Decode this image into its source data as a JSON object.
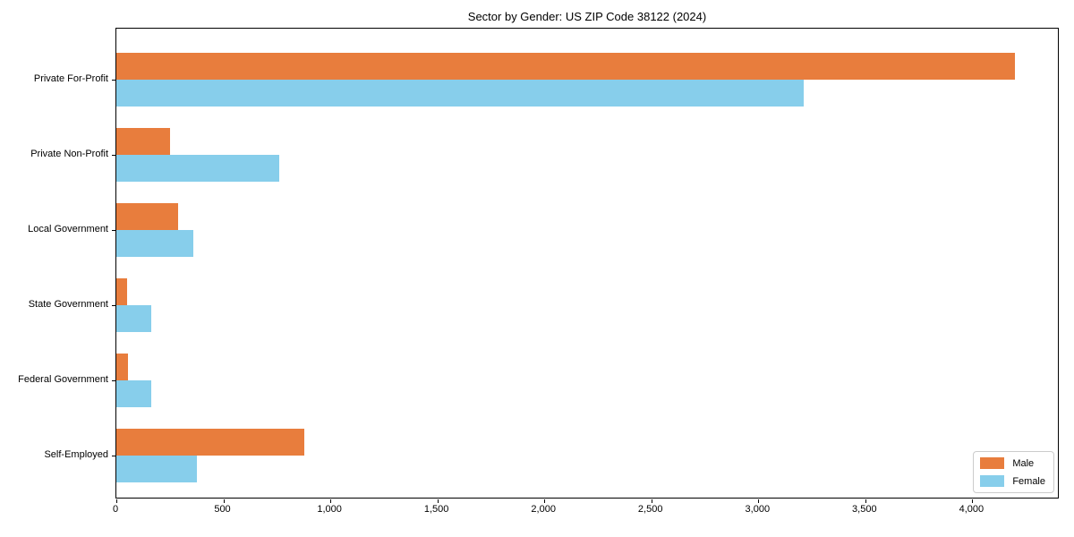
{
  "figure": {
    "background": "#ffffff"
  },
  "chart_data": {
    "type": "bar",
    "orientation": "horizontal",
    "title": "Sector by Gender: US ZIP Code 38122 (2024)",
    "categories": [
      "Private For-Profit",
      "Private Non-Profit",
      "Local Government",
      "State Government",
      "Federal Government",
      "Self-Employed"
    ],
    "series": [
      {
        "name": "Male",
        "color": "#e87d3d",
        "values": [
          4200,
          250,
          290,
          50,
          55,
          880
        ]
      },
      {
        "name": "Female",
        "color": "#87ceeb",
        "values": [
          3210,
          760,
          360,
          165,
          165,
          375
        ]
      }
    ],
    "xlabel": "",
    "ylabel": "",
    "xlim": [
      0,
      4400
    ],
    "xticks": [
      0,
      500,
      1000,
      1500,
      2000,
      2500,
      3000,
      3500,
      4000
    ],
    "xtick_labels": [
      "0",
      "500",
      "1,000",
      "1,500",
      "2,000",
      "2,500",
      "3,000",
      "3,500",
      "4,000"
    ],
    "grid": false,
    "legend": {
      "position": "lower right"
    }
  }
}
